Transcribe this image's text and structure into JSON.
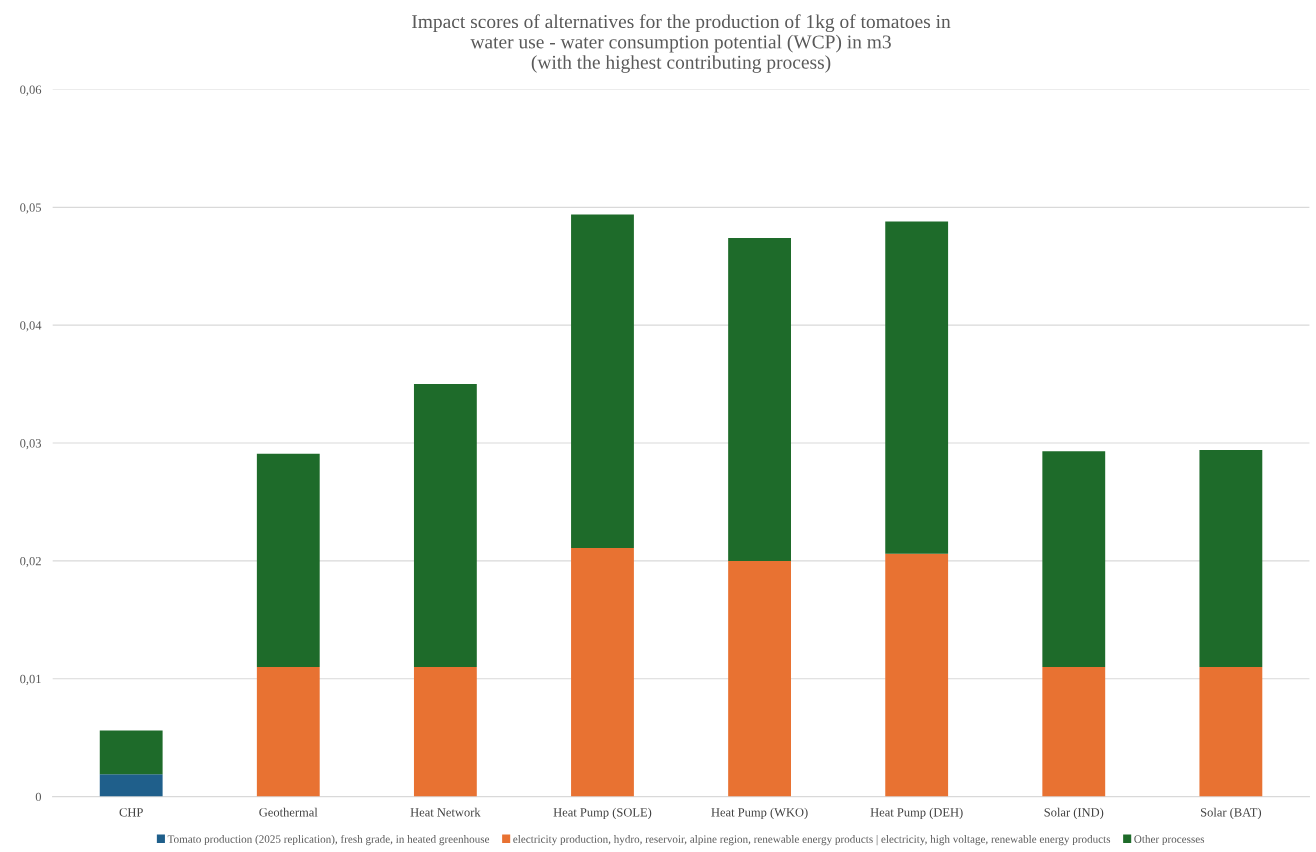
{
  "chart_data": {
    "type": "bar",
    "stacked": true,
    "title": "Impact scores of alternatives for the production of 1kg of tomatoes in\nwater use - water consumption potential (WCP) in m3\n(with the highest contributing process)",
    "categories": [
      "CHP",
      "Geothermal",
      "Heat Network",
      "Heat Pump (SOLE)",
      "Heat Pump (WKO)",
      "Heat Pump (DEH)",
      "Solar (IND)",
      "Solar (BAT)"
    ],
    "series": [
      {
        "name": "Tomato production (2025 replication), fresh grade, in heated greenhouse",
        "color": "#1f5f8b",
        "values": [
          0.0019,
          0,
          0,
          0,
          0,
          0,
          0,
          0
        ]
      },
      {
        "name": "electricity production, hydro, reservoir, alpine region, renewable energy products | electricity, high voltage, renewable energy products",
        "color": "#e87232",
        "values": [
          0,
          0.011,
          0.011,
          0.0211,
          0.02,
          0.0206,
          0.011,
          0.011
        ]
      },
      {
        "name": "Other processes",
        "color": "#1e6b2a",
        "values": [
          0.0037,
          0.0181,
          0.024,
          0.0283,
          0.0274,
          0.0282,
          0.0183,
          0.0184
        ]
      }
    ],
    "ylim": [
      0,
      0.06
    ],
    "yticks": [
      {
        "value": 0,
        "label": "0"
      },
      {
        "value": 0.01,
        "label": "0,01"
      },
      {
        "value": 0.02,
        "label": "0,02"
      },
      {
        "value": 0.03,
        "label": "0,03"
      },
      {
        "value": 0.04,
        "label": "0,04"
      },
      {
        "value": 0.05,
        "label": "0,05"
      },
      {
        "value": 0.06,
        "label": "0,06"
      }
    ],
    "grid": "y",
    "legend": "bottom"
  }
}
